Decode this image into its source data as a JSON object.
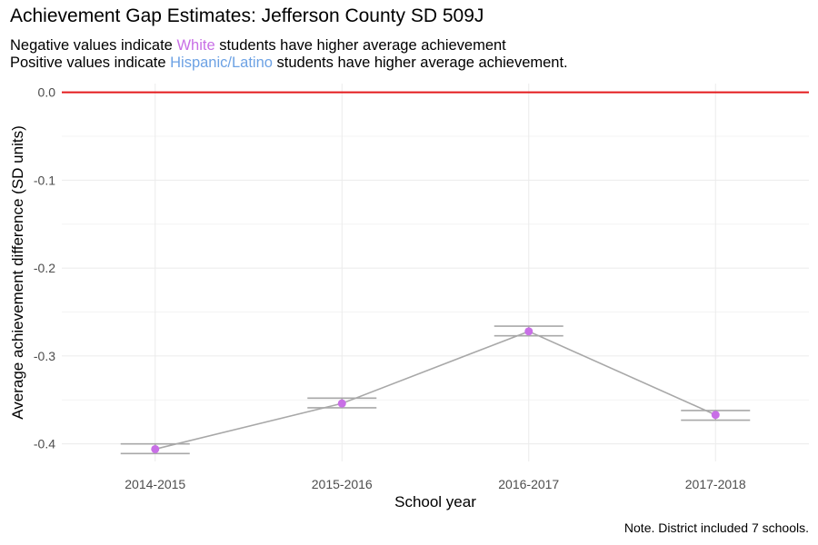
{
  "header": {
    "title": "Achievement Gap Estimates: Jefferson County SD 509J",
    "subtitle1_prefix": "Negative values indicate ",
    "subtitle1_group": "White",
    "subtitle1_suffix": " students have higher average achievement",
    "subtitle2_prefix": "Positive values indicate ",
    "subtitle2_group": "Hispanic/Latino",
    "subtitle2_suffix": " students have higher average achievement."
  },
  "note": "Note. District included 7 schools.",
  "colors": {
    "white_group": "#c86fe6",
    "hispanic_group": "#6da2e4",
    "reference_line": "#e41a1c",
    "series_line": "#a8a8a8",
    "point": "#c86fe6",
    "grid": "#ebebeb"
  },
  "chart_data": {
    "type": "line",
    "xlabel": "School year",
    "ylabel": "Average achievement difference (SD units)",
    "categories": [
      "2014-2015",
      "2015-2016",
      "2016-2017",
      "2017-2018"
    ],
    "values": [
      -0.406,
      -0.354,
      -0.272,
      -0.367
    ],
    "error_bars": [
      {
        "low": -0.411,
        "high": -0.4
      },
      {
        "low": -0.359,
        "high": -0.348
      },
      {
        "low": -0.277,
        "high": -0.266
      },
      {
        "low": -0.373,
        "high": -0.362
      }
    ],
    "ylim": [
      -0.42,
      0.01
    ],
    "yticks": [
      0.0,
      -0.1,
      -0.2,
      -0.3,
      -0.4
    ],
    "ytick_labels": [
      "0.0",
      "-0.1",
      "-0.2",
      "-0.3",
      "-0.4"
    ],
    "reference_line": 0,
    "grid": true,
    "legend": "none"
  }
}
